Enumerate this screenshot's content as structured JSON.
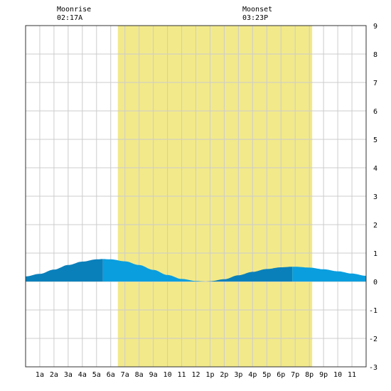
{
  "header": {
    "moonrise": {
      "label": "Moonrise",
      "time": "02:17A"
    },
    "moonset": {
      "label": "Moonset",
      "time": "03:23P"
    }
  },
  "chart_data": {
    "type": "area",
    "title": "",
    "xlabel": "",
    "ylabel": "",
    "x_unit": "hour of day",
    "xlim": [
      0,
      24
    ],
    "ylim": [
      -3,
      9
    ],
    "grid": true,
    "x_ticks": [
      {
        "x": 1,
        "label": "1a"
      },
      {
        "x": 2,
        "label": "2a"
      },
      {
        "x": 3,
        "label": "3a"
      },
      {
        "x": 4,
        "label": "4a"
      },
      {
        "x": 5,
        "label": "5a"
      },
      {
        "x": 6,
        "label": "6a"
      },
      {
        "x": 7,
        "label": "7a"
      },
      {
        "x": 8,
        "label": "8a"
      },
      {
        "x": 9,
        "label": "9a"
      },
      {
        "x": 10,
        "label": "10"
      },
      {
        "x": 11,
        "label": "11"
      },
      {
        "x": 12,
        "label": "12"
      },
      {
        "x": 13,
        "label": "1p"
      },
      {
        "x": 14,
        "label": "2p"
      },
      {
        "x": 15,
        "label": "3p"
      },
      {
        "x": 16,
        "label": "4p"
      },
      {
        "x": 17,
        "label": "5p"
      },
      {
        "x": 18,
        "label": "6p"
      },
      {
        "x": 19,
        "label": "7p"
      },
      {
        "x": 20,
        "label": "8p"
      },
      {
        "x": 21,
        "label": "9p"
      },
      {
        "x": 22,
        "label": "10"
      },
      {
        "x": 23,
        "label": "11"
      }
    ],
    "y_ticks": [
      9,
      8,
      7,
      6,
      5,
      4,
      3,
      2,
      1,
      0,
      -1,
      -2,
      -3
    ],
    "daylight": {
      "start": 6.5,
      "end": 20.2,
      "color": "#f2e98a"
    },
    "series": [
      {
        "x": [
          0,
          1,
          2,
          3,
          4,
          5,
          5.45,
          6,
          7,
          8,
          9,
          10,
          11,
          12,
          12.7,
          13,
          14,
          15,
          16,
          17,
          18,
          18.8,
          19,
          20,
          21,
          22,
          23,
          24
        ],
        "y": [
          0.18,
          0.27,
          0.42,
          0.58,
          0.7,
          0.78,
          0.79,
          0.78,
          0.71,
          0.58,
          0.41,
          0.23,
          0.09,
          0.02,
          0.0,
          0.01,
          0.08,
          0.22,
          0.34,
          0.44,
          0.5,
          0.52,
          0.52,
          0.49,
          0.43,
          0.36,
          0.28,
          0.2
        ]
      }
    ],
    "extrema": [
      {
        "x": 0,
        "type": "low"
      },
      {
        "x": 5.45,
        "type": "high"
      },
      {
        "x": 12.7,
        "type": "low"
      },
      {
        "x": 18.8,
        "type": "high"
      },
      {
        "x": 24,
        "type": "low"
      }
    ],
    "colors": {
      "rising": "#0a80bb",
      "falling": "#0a9ede",
      "grid": "#cccccc"
    }
  }
}
